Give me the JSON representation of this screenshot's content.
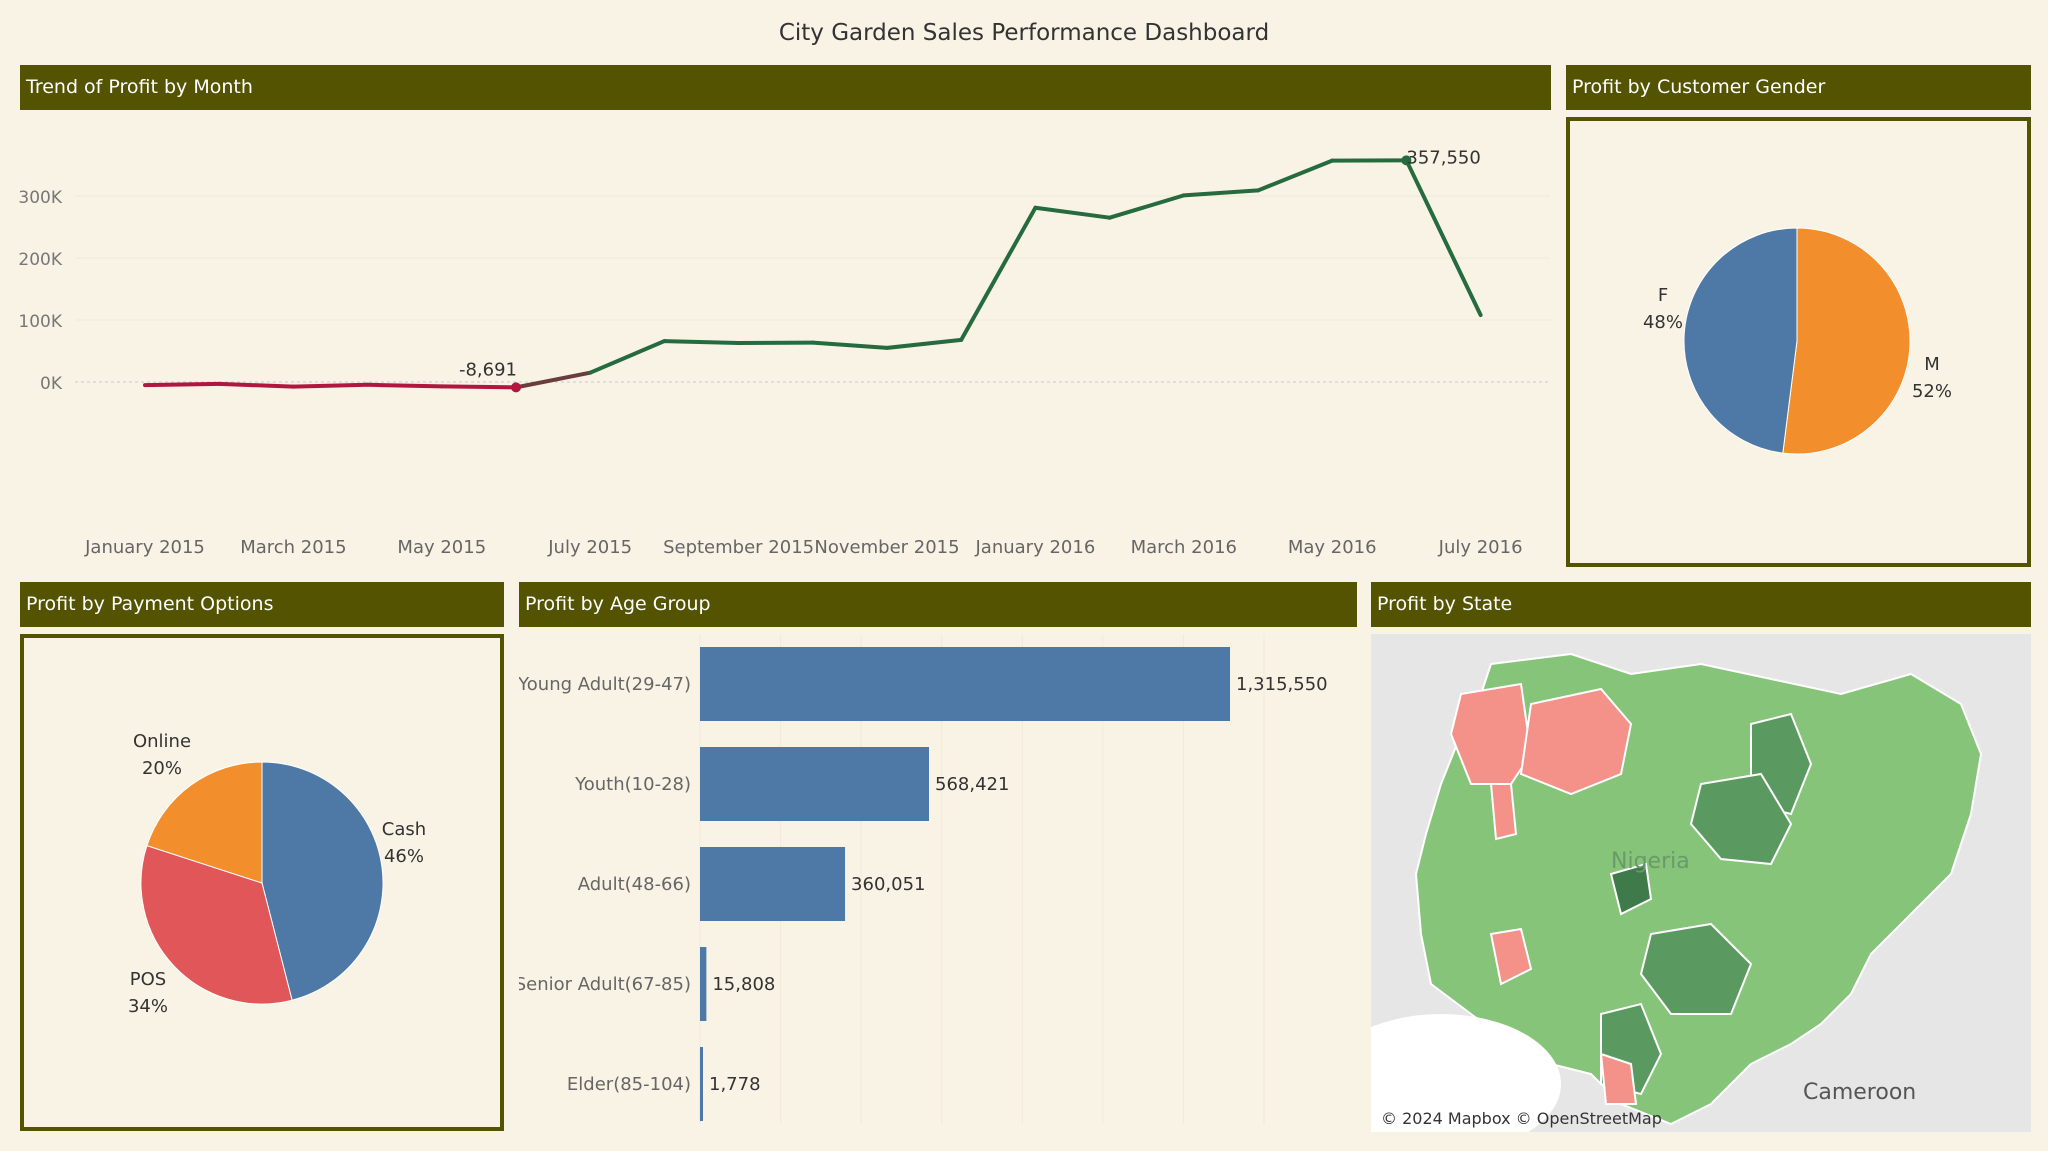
{
  "dashboard_title": "City Garden Sales Performance Dashboard",
  "panels": {
    "trend": "Trend of Profit by Month",
    "gender": "Profit by Customer Gender",
    "payment": "Profit by Payment Options",
    "age": "Profit by Age Group",
    "state": "Profit by State"
  },
  "colors": {
    "header": "#535301",
    "background": "#f9f3e6",
    "positive_line": "#256b3e",
    "negative_line": "#b0163e",
    "bar": "#4e79a7",
    "pie_blue": "#4e79a7",
    "pie_orange": "#f28e2b",
    "pie_red": "#e15759",
    "map_profit_high": "#5a9a60",
    "map_profit_mid": "#86c47a",
    "map_loss": "#f4928a"
  },
  "chart_data": [
    {
      "id": "trend",
      "type": "line",
      "title": "Trend of Profit by Month",
      "x": [
        "January 2015",
        "February 2015",
        "March 2015",
        "April 2015",
        "May 2015",
        "June 2015",
        "July 2015",
        "August 2015",
        "September 2015",
        "October 2015",
        "November 2015",
        "December 2015",
        "January 2016",
        "February 2016",
        "March 2016",
        "April 2016",
        "May 2016",
        "June 2016",
        "July 2016"
      ],
      "values": [
        -5000,
        -3000,
        -7500,
        -4500,
        -7000,
        -8691,
        15000,
        66000,
        63000,
        63500,
        55000,
        68000,
        281000,
        265000,
        301000,
        309000,
        357000,
        357550,
        108000
      ],
      "x_tick_labels": [
        "January 2015",
        "March 2015",
        "May 2015",
        "July 2015",
        "September 2015",
        "November 2015",
        "January 2016",
        "March 2016",
        "May 2016",
        "July 2016"
      ],
      "y_tick_labels": [
        "0K",
        "100K",
        "200K",
        "300K"
      ],
      "ylim": [
        -30000,
        380000
      ],
      "annotations": [
        {
          "label": "-8,691",
          "index": 5
        },
        {
          "label": "357,550",
          "index": 17
        }
      ],
      "grid": true
    },
    {
      "id": "gender",
      "type": "pie",
      "title": "Profit by Customer Gender",
      "slices": [
        {
          "name": "M",
          "value": 52,
          "label": "52%",
          "color": "#f28e2b"
        },
        {
          "name": "F",
          "value": 48,
          "label": "48%",
          "color": "#4e79a7"
        }
      ]
    },
    {
      "id": "payment",
      "type": "pie",
      "title": "Profit by Payment Options",
      "slices": [
        {
          "name": "Cash",
          "value": 46,
          "label": "46%",
          "color": "#4e79a7"
        },
        {
          "name": "POS",
          "value": 34,
          "label": "34%",
          "color": "#e15759"
        },
        {
          "name": "Online",
          "value": 20,
          "label": "20%",
          "color": "#f28e2b"
        }
      ]
    },
    {
      "id": "age",
      "type": "bar",
      "orientation": "horizontal",
      "title": "Profit by Age Group",
      "categories": [
        "Young Adult(29-47)",
        "Youth(10-28)",
        "Adult(48-66)",
        "Senior Adult(67-85)",
        "Elder(85-104)"
      ],
      "values": [
        1315550,
        568421,
        360051,
        15808,
        1778
      ],
      "value_labels": [
        "1,315,550",
        "568,421",
        "360,051",
        "15,808",
        "1,778"
      ],
      "xlim": [
        0,
        1600000
      ]
    }
  ],
  "map": {
    "country_label": "Nigeria",
    "neighbor_label": "Cameroon",
    "credit": "© 2024 Mapbox © OpenStreetMap"
  }
}
